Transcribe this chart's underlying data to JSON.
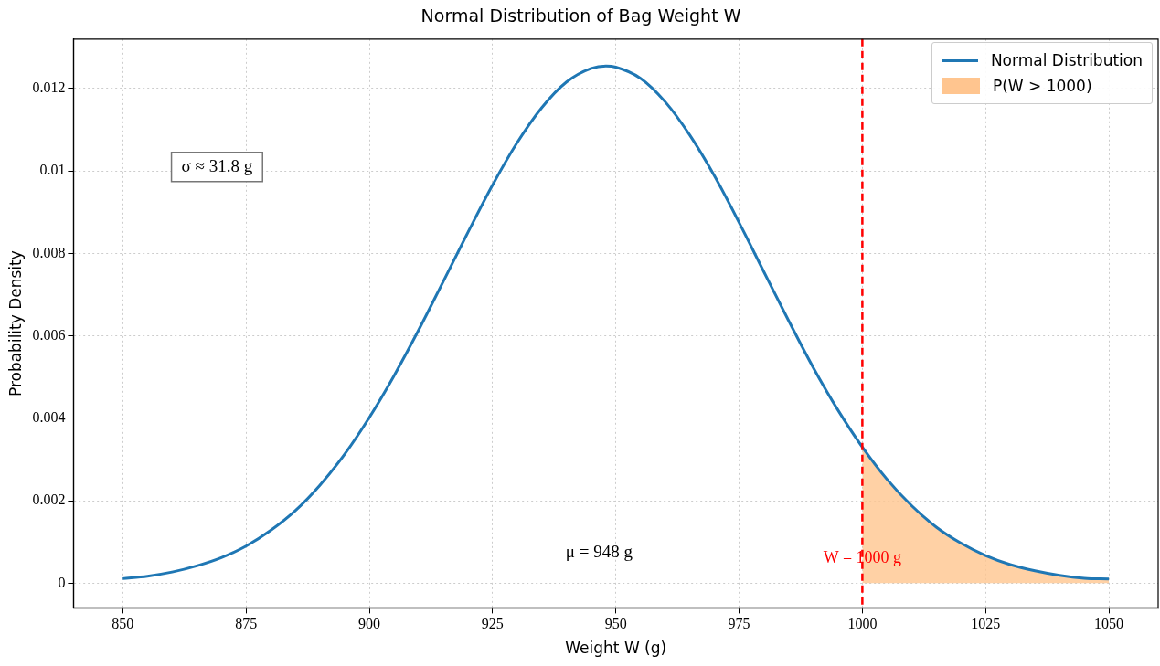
{
  "chart_data": {
    "type": "line",
    "title": "Normal Distribution of Bag Weight W",
    "xlabel": "Weight W (g)",
    "ylabel": "Probability Density",
    "xlim": [
      840,
      1060
    ],
    "xticks": [
      850,
      875,
      900,
      925,
      950,
      975,
      1000,
      1025,
      1050
    ],
    "ylim": [
      -0.0006,
      0.0132
    ],
    "yticks": [
      0,
      0.002,
      0.004,
      0.006,
      0.008,
      {
        "value": 0.01,
        "label": "0.01"
      },
      0.012
    ],
    "grid": true,
    "legend": "top right",
    "marker": "none",
    "series": [
      {
        "name": "Normal Distribution",
        "color": "#1f77b4",
        "x": [
          850,
          855,
          860,
          865,
          870,
          875,
          880,
          885,
          890,
          895,
          900,
          905,
          910,
          915,
          920,
          925,
          930,
          935,
          940,
          945,
          948,
          950,
          955,
          960,
          965,
          970,
          975,
          980,
          985,
          990,
          995,
          1000,
          1005,
          1010,
          1015,
          1020,
          1025,
          1030,
          1035,
          1040,
          1045,
          1050
        ],
        "values": [
          0.00011,
          0.00017,
          0.00027,
          0.00042,
          0.00062,
          0.0009,
          0.00128,
          0.00176,
          0.00238,
          0.00313,
          0.00402,
          0.00503,
          0.00614,
          0.00732,
          0.00851,
          0.00966,
          0.01069,
          0.01154,
          0.01216,
          0.01249,
          0.01255,
          0.01252,
          0.01225,
          0.01168,
          0.01087,
          0.00988,
          0.00875,
          0.00756,
          0.00638,
          0.00524,
          0.00421,
          0.0033,
          0.00252,
          0.00188,
          0.00136,
          0.00097,
          0.00067,
          0.00045,
          0.0003,
          0.00019,
          0.00012,
          0.0001
        ]
      },
      {
        "name": "P(W > 1000)",
        "type": "area",
        "color": "#ffc58f",
        "x": [
          1000,
          1005,
          1010,
          1015,
          1020,
          1025,
          1030,
          1035,
          1040,
          1045,
          1050
        ],
        "values": [
          0.0033,
          0.00252,
          0.00188,
          0.00136,
          0.00097,
          0.00067,
          0.00045,
          0.0003,
          0.00019,
          0.00012,
          0.0001
        ]
      }
    ],
    "ref_lines": [
      {
        "axis": "x",
        "value": 1000,
        "label": "W = 1000 g",
        "color": "#ff0000",
        "line_style": "dashed"
      }
    ],
    "annotations": [
      "σ ≈ 31.8 g",
      "μ = 948 g"
    ]
  }
}
